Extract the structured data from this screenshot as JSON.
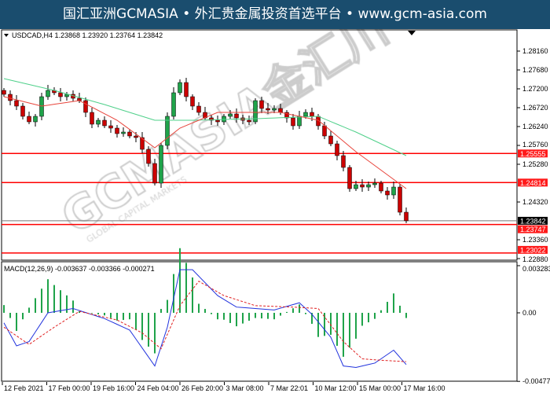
{
  "title_bar": {
    "text": "国汇亚洲GCMASIA • 外汇贵金属投资首选平台 • www.gcm-asia.com"
  },
  "watermark": {
    "text": "GCMASIA金汇川",
    "subtext": "GLOBAL CAPITAL MARKETS"
  },
  "colors": {
    "bull": "#1fa34a",
    "bear": "#cc0000",
    "ma_fast": "#e8453c",
    "ma_slow": "#4fd08a",
    "level_line": "#ff0000",
    "macd_main": "#2233dd",
    "macd_signal": "#e02020",
    "title_bg": "#1a4d6e"
  },
  "main_chart": {
    "header": "USDCAD,H4  1.23868 1.23920 1.23764 1.23842",
    "price_ticks": [
      "1.28160",
      "1.27680",
      "1.27200",
      "1.26720",
      "1.26240",
      "1.25760",
      "1.25280",
      "1.24320",
      "1.23360",
      "1.22880"
    ],
    "current_price": "1.23842",
    "levels": [
      "1.25555",
      "1.24814",
      "1.23747",
      "1.23022"
    ]
  },
  "macd": {
    "header": "MACD(12,26,9) -0.003637 -0.003366 -0.000271",
    "ticks": [
      "0.003283",
      "0.00",
      "-0.004772"
    ]
  },
  "time_axis": [
    "12 Feb 2021",
    "17 Feb 00:00",
    "19 Feb 16:00",
    "24 Feb 04:00",
    "26 Feb 20:00",
    "3 Mar 08:00",
    "7 Mar 22:01",
    "10 Mar 12:00",
    "15 Mar 00:00",
    "17 Mar 16:00"
  ],
  "chart_data": {
    "type": "candlestick",
    "symbol": "USDCAD",
    "timeframe": "H4",
    "ylim": [
      1.2288,
      1.283
    ],
    "closes": [
      1.2706,
      1.269,
      1.2676,
      1.265,
      1.2636,
      1.265,
      1.27,
      1.2716,
      1.271,
      1.27,
      1.2706,
      1.2696,
      1.269,
      1.266,
      1.263,
      1.264,
      1.2626,
      1.262,
      1.2606,
      1.261,
      1.26,
      1.2596,
      1.2566,
      1.253,
      1.248,
      1.2576,
      1.265,
      1.271,
      1.2736,
      1.27,
      1.2676,
      1.266,
      1.2646,
      1.264,
      1.2636,
      1.265,
      1.2656,
      1.2646,
      1.264,
      1.2636,
      1.269,
      1.267,
      1.2666,
      1.267,
      1.266,
      1.2646,
      1.2626,
      1.265,
      1.266,
      1.265,
      1.2626,
      1.26,
      1.258,
      1.255,
      1.252,
      1.2466,
      1.2476,
      1.247,
      1.2476,
      1.248,
      1.246,
      1.245,
      1.247,
      1.2406,
      1.23842
    ],
    "ma_fast": [
      [
        0,
        1.27
      ],
      [
        6,
        1.2676
      ],
      [
        12,
        1.269
      ],
      [
        18,
        1.264
      ],
      [
        24,
        1.257
      ],
      [
        28,
        1.262
      ],
      [
        34,
        1.266
      ],
      [
        44,
        1.266
      ],
      [
        50,
        1.264
      ],
      [
        56,
        1.256
      ],
      [
        64,
        1.2466
      ]
    ],
    "ma_slow": [
      [
        0,
        1.2746
      ],
      [
        8,
        1.2716
      ],
      [
        16,
        1.268
      ],
      [
        24,
        1.264
      ],
      [
        30,
        1.264
      ],
      [
        40,
        1.2644
      ],
      [
        50,
        1.265
      ],
      [
        56,
        1.261
      ],
      [
        64,
        1.255
      ]
    ],
    "macd_ylim": [
      -0.004772,
      0.003283
    ],
    "macd_main": [
      [
        0,
        -0.0007
      ],
      [
        2,
        -0.0023
      ],
      [
        4,
        -0.002
      ],
      [
        7,
        0.0
      ],
      [
        11,
        0.0003
      ],
      [
        16,
        -0.0004
      ],
      [
        20,
        -0.0012
      ],
      [
        24,
        -0.0037
      ],
      [
        26,
        -0.001
      ],
      [
        28,
        0.003
      ],
      [
        30,
        0.003
      ],
      [
        34,
        0.0012
      ],
      [
        37,
        0.0004
      ],
      [
        43,
        0.0002
      ],
      [
        47,
        0.0007
      ],
      [
        49,
        -0.0001
      ],
      [
        52,
        -0.0017
      ],
      [
        54,
        -0.0037
      ],
      [
        56,
        -0.0038
      ],
      [
        59,
        -0.0035
      ],
      [
        62,
        -0.0026
      ],
      [
        64,
        -0.0036
      ]
    ],
    "macd_signal": [
      [
        0,
        -0.001
      ],
      [
        4,
        -0.0022
      ],
      [
        8,
        -0.001
      ],
      [
        12,
        0.0001
      ],
      [
        18,
        -0.0005
      ],
      [
        22,
        -0.0014
      ],
      [
        25,
        -0.0025
      ],
      [
        28,
        0.0005
      ],
      [
        31,
        0.0022
      ],
      [
        35,
        0.0012
      ],
      [
        40,
        0.0005
      ],
      [
        46,
        0.0004
      ],
      [
        50,
        0.0003
      ],
      [
        54,
        -0.002
      ],
      [
        57,
        -0.0032
      ],
      [
        60,
        -0.0033
      ],
      [
        64,
        -0.0034
      ]
    ]
  }
}
